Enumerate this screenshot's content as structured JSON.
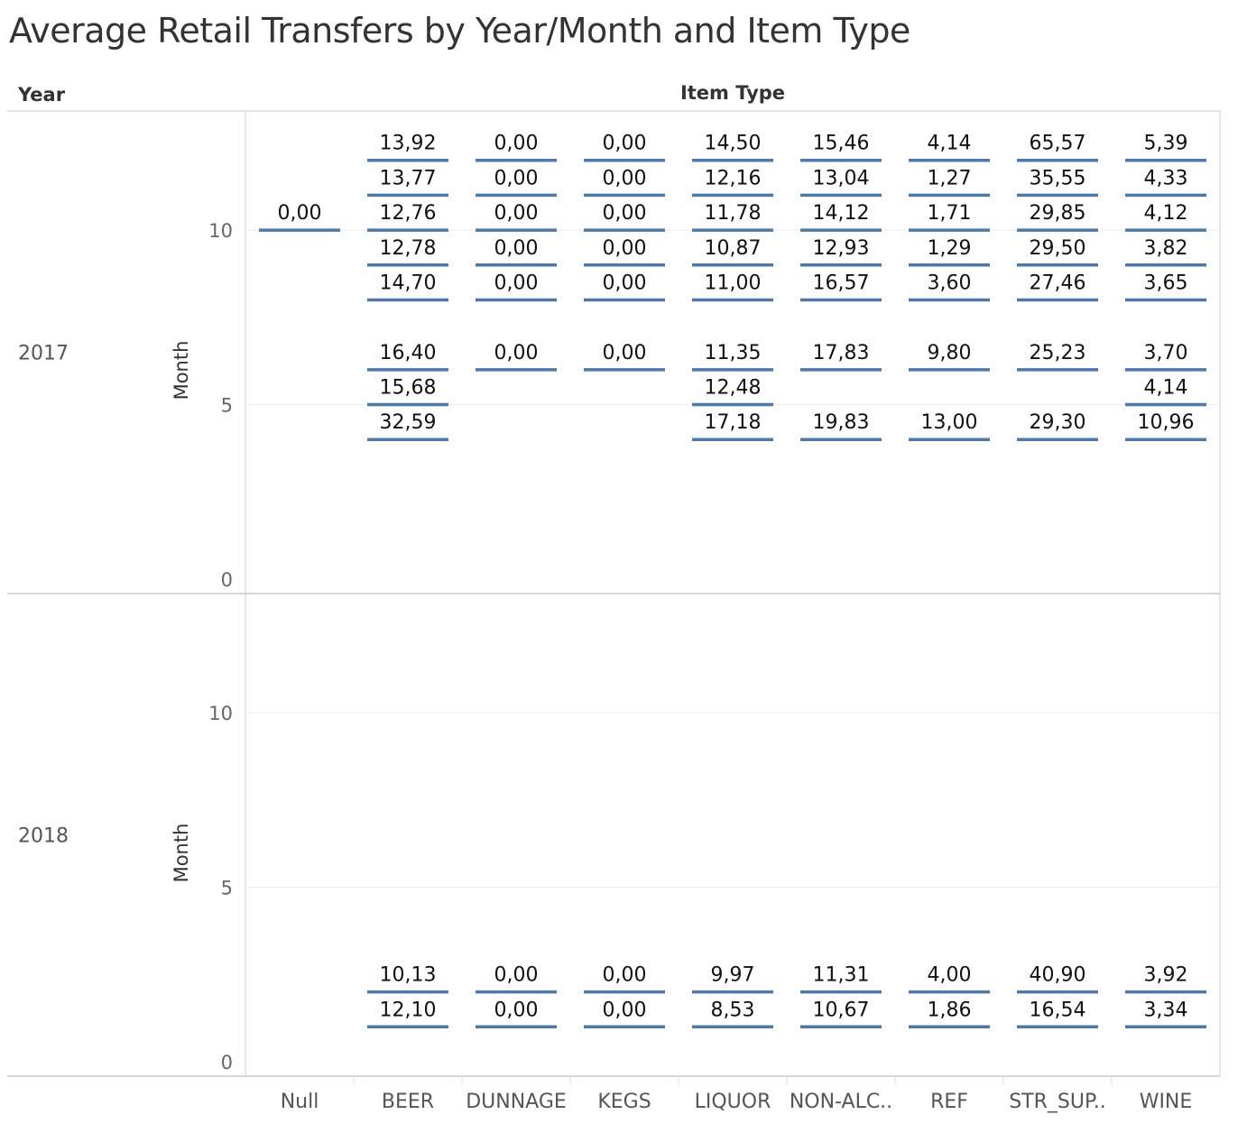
{
  "chart_data": {
    "type": "table",
    "title": "Average Retail Transfers by Year/Month and Item Type",
    "row_header": "Year",
    "column_header": "Item Type",
    "ylabel": "Month",
    "ylim": [
      0,
      13
    ],
    "yticks": [
      0,
      5,
      10
    ],
    "categories": [
      "Null",
      "BEER",
      "DUNNAGE",
      "KEGS",
      "LIQUOR",
      "NON-ALC..",
      "REF",
      "STR_SUP..",
      "WINE"
    ],
    "panels": [
      {
        "year": "2017",
        "series": [
          {
            "category": "Null",
            "points": [
              {
                "month": 10,
                "label": "0,00"
              }
            ]
          },
          {
            "category": "BEER",
            "points": [
              {
                "month": 12,
                "label": "13,92"
              },
              {
                "month": 11,
                "label": "13,77"
              },
              {
                "month": 10,
                "label": "12,76"
              },
              {
                "month": 9,
                "label": "12,78"
              },
              {
                "month": 8,
                "label": "14,70"
              },
              {
                "month": 6,
                "label": "16,40"
              },
              {
                "month": 5,
                "label": "15,68"
              },
              {
                "month": 4,
                "label": "32,59"
              }
            ]
          },
          {
            "category": "DUNNAGE",
            "points": [
              {
                "month": 12,
                "label": "0,00"
              },
              {
                "month": 11,
                "label": "0,00"
              },
              {
                "month": 10,
                "label": "0,00"
              },
              {
                "month": 9,
                "label": "0,00"
              },
              {
                "month": 8,
                "label": "0,00"
              },
              {
                "month": 6,
                "label": "0,00"
              }
            ]
          },
          {
            "category": "KEGS",
            "points": [
              {
                "month": 12,
                "label": "0,00"
              },
              {
                "month": 11,
                "label": "0,00"
              },
              {
                "month": 10,
                "label": "0,00"
              },
              {
                "month": 9,
                "label": "0,00"
              },
              {
                "month": 8,
                "label": "0,00"
              },
              {
                "month": 6,
                "label": "0,00"
              }
            ]
          },
          {
            "category": "LIQUOR",
            "points": [
              {
                "month": 12,
                "label": "14,50"
              },
              {
                "month": 11,
                "label": "12,16"
              },
              {
                "month": 10,
                "label": "11,78"
              },
              {
                "month": 9,
                "label": "10,87"
              },
              {
                "month": 8,
                "label": "11,00"
              },
              {
                "month": 6,
                "label": "11,35"
              },
              {
                "month": 5,
                "label": "12,48"
              },
              {
                "month": 4,
                "label": "17,18"
              }
            ]
          },
          {
            "category": "NON-ALC..",
            "points": [
              {
                "month": 12,
                "label": "15,46"
              },
              {
                "month": 11,
                "label": "13,04"
              },
              {
                "month": 10,
                "label": "14,12"
              },
              {
                "month": 9,
                "label": "12,93"
              },
              {
                "month": 8,
                "label": "16,57"
              },
              {
                "month": 6,
                "label": "17,83"
              },
              {
                "month": 4,
                "label": "19,83"
              }
            ]
          },
          {
            "category": "REF",
            "points": [
              {
                "month": 12,
                "label": "4,14"
              },
              {
                "month": 11,
                "label": "1,27"
              },
              {
                "month": 10,
                "label": "1,71"
              },
              {
                "month": 9,
                "label": "1,29"
              },
              {
                "month": 8,
                "label": "3,60"
              },
              {
                "month": 6,
                "label": "9,80"
              },
              {
                "month": 4,
                "label": "13,00"
              }
            ]
          },
          {
            "category": "STR_SUP..",
            "points": [
              {
                "month": 12,
                "label": "65,57"
              },
              {
                "month": 11,
                "label": "35,55"
              },
              {
                "month": 10,
                "label": "29,85"
              },
              {
                "month": 9,
                "label": "29,50"
              },
              {
                "month": 8,
                "label": "27,46"
              },
              {
                "month": 6,
                "label": "25,23"
              },
              {
                "month": 4,
                "label": "29,30"
              }
            ]
          },
          {
            "category": "WINE",
            "points": [
              {
                "month": 12,
                "label": "5,39"
              },
              {
                "month": 11,
                "label": "4,33"
              },
              {
                "month": 10,
                "label": "4,12"
              },
              {
                "month": 9,
                "label": "3,82"
              },
              {
                "month": 8,
                "label": "3,65"
              },
              {
                "month": 6,
                "label": "3,70"
              },
              {
                "month": 5,
                "label": "4,14"
              },
              {
                "month": 4,
                "label": "10,96"
              }
            ]
          }
        ]
      },
      {
        "year": "2018",
        "series": [
          {
            "category": "BEER",
            "points": [
              {
                "month": 2,
                "label": "10,13"
              },
              {
                "month": 1,
                "label": "12,10"
              }
            ]
          },
          {
            "category": "DUNNAGE",
            "points": [
              {
                "month": 2,
                "label": "0,00"
              },
              {
                "month": 1,
                "label": "0,00"
              }
            ]
          },
          {
            "category": "KEGS",
            "points": [
              {
                "month": 2,
                "label": "0,00"
              },
              {
                "month": 1,
                "label": "0,00"
              }
            ]
          },
          {
            "category": "LIQUOR",
            "points": [
              {
                "month": 2,
                "label": "9,97"
              },
              {
                "month": 1,
                "label": "8,53"
              }
            ]
          },
          {
            "category": "NON-ALC..",
            "points": [
              {
                "month": 2,
                "label": "11,31"
              },
              {
                "month": 1,
                "label": "10,67"
              }
            ]
          },
          {
            "category": "REF",
            "points": [
              {
                "month": 2,
                "label": "4,00"
              },
              {
                "month": 1,
                "label": "1,86"
              }
            ]
          },
          {
            "category": "STR_SUP..",
            "points": [
              {
                "month": 2,
                "label": "40,90"
              },
              {
                "month": 1,
                "label": "16,54"
              }
            ]
          },
          {
            "category": "WINE",
            "points": [
              {
                "month": 2,
                "label": "3,92"
              },
              {
                "month": 1,
                "label": "3,34"
              }
            ]
          }
        ]
      }
    ],
    "mark_color": "#4e79a7",
    "grid": true
  }
}
